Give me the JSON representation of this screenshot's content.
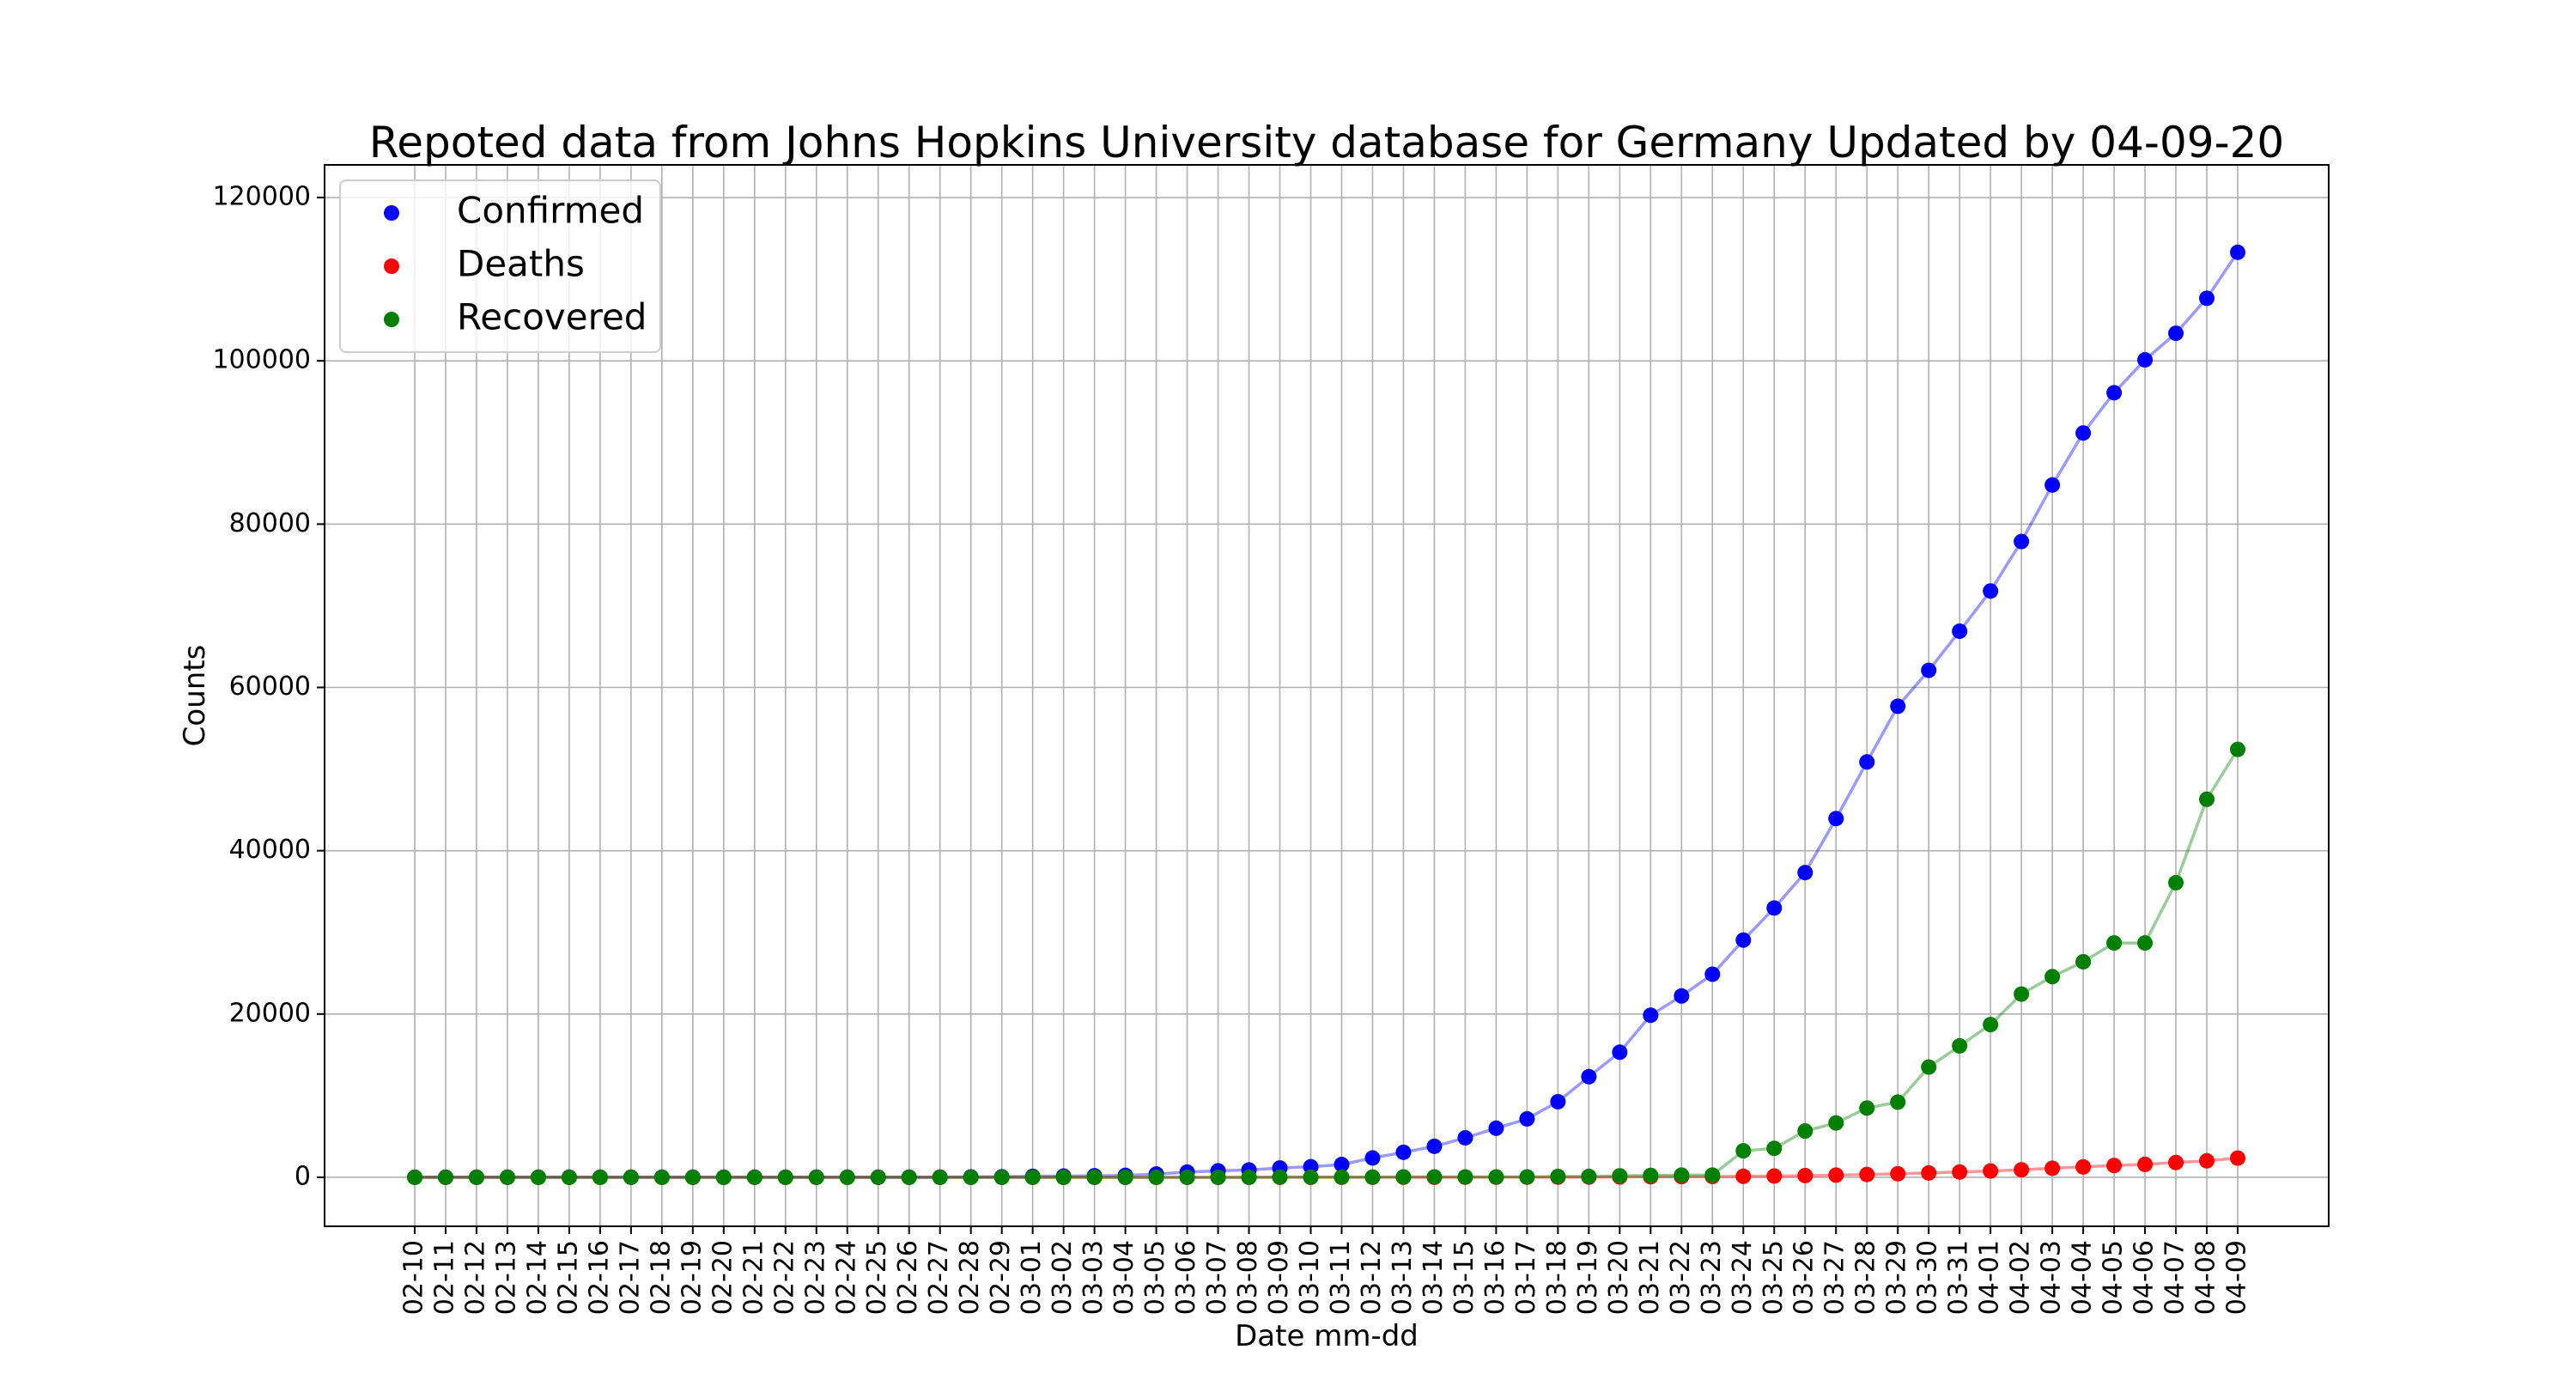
{
  "chart_data": {
    "type": "line",
    "title": "Repoted data from Johns Hopkins University database for Germany Updated by 04-09-20",
    "xlabel": "Date mm-dd",
    "ylabel": "Counts",
    "ylim": [
      -6000,
      124000
    ],
    "yticks": [
      0,
      20000,
      40000,
      60000,
      80000,
      100000,
      120000
    ],
    "grid": true,
    "legend_position": "top-left",
    "x": [
      "02-10",
      "02-11",
      "02-12",
      "02-13",
      "02-14",
      "02-15",
      "02-16",
      "02-17",
      "02-18",
      "02-19",
      "02-20",
      "02-21",
      "02-22",
      "02-23",
      "02-24",
      "02-25",
      "02-26",
      "02-27",
      "02-28",
      "02-29",
      "03-01",
      "03-02",
      "03-03",
      "03-04",
      "03-05",
      "03-06",
      "03-07",
      "03-08",
      "03-09",
      "03-10",
      "03-11",
      "03-12",
      "03-13",
      "03-14",
      "03-15",
      "03-16",
      "03-17",
      "03-18",
      "03-19",
      "03-20",
      "03-21",
      "03-22",
      "03-23",
      "03-24",
      "03-25",
      "03-26",
      "03-27",
      "03-28",
      "03-29",
      "03-30",
      "03-31",
      "04-01",
      "04-02",
      "04-03",
      "04-04",
      "04-05",
      "04-06",
      "04-07",
      "04-08",
      "04-09"
    ],
    "series": [
      {
        "name": "Confirmed",
        "color": "#0000ff",
        "values": [
          14,
          14,
          16,
          16,
          16,
          16,
          16,
          16,
          16,
          16,
          16,
          16,
          16,
          16,
          16,
          16,
          21,
          26,
          53,
          66,
          117,
          150,
          188,
          240,
          400,
          639,
          795,
          902,
          1139,
          1296,
          1567,
          2369,
          3062,
          3795,
          4838,
          6012,
          7156,
          9257,
          12327,
          15320,
          19848,
          22213,
          24873,
          29056,
          32986,
          37323,
          43938,
          50871,
          57695,
          62095,
          66885,
          71808,
          77872,
          84794,
          91159,
          96092,
          100123,
          103374,
          107663,
          113296
        ]
      },
      {
        "name": "Deaths",
        "color": "#ff0000",
        "values": [
          0,
          0,
          0,
          0,
          0,
          0,
          0,
          0,
          0,
          0,
          0,
          0,
          0,
          0,
          0,
          0,
          0,
          0,
          0,
          0,
          0,
          0,
          0,
          0,
          0,
          0,
          0,
          0,
          2,
          2,
          3,
          3,
          6,
          8,
          9,
          13,
          13,
          24,
          28,
          44,
          67,
          84,
          94,
          123,
          157,
          206,
          267,
          342,
          433,
          533,
          645,
          775,
          920,
          1107,
          1275,
          1444,
          1584,
          1810,
          2016,
          2349
        ]
      },
      {
        "name": "Recovered",
        "color": "#008000",
        "values": [
          0,
          0,
          0,
          0,
          0,
          0,
          0,
          0,
          0,
          0,
          0,
          0,
          0,
          0,
          0,
          0,
          0,
          0,
          0,
          0,
          0,
          0,
          0,
          0,
          0,
          0,
          0,
          0,
          25,
          25,
          25,
          25,
          46,
          46,
          46,
          46,
          46,
          105,
          113,
          180,
          233,
          266,
          266,
          3243,
          3547,
          5673,
          6658,
          8481,
          9211,
          13500,
          16100,
          18700,
          22440,
          24575,
          26400,
          28700,
          28700,
          36081,
          46300,
          52407
        ]
      }
    ]
  }
}
